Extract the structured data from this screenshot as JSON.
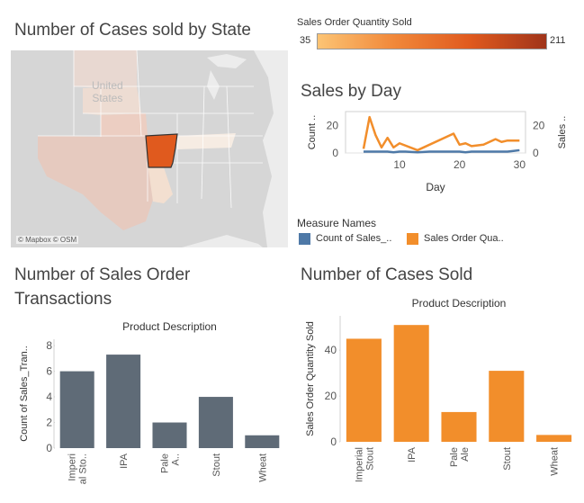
{
  "titles": {
    "map": "Number of Cases sold by State",
    "sales_by_day": "Sales by Day",
    "transactions_line1": "Number of Sales Order",
    "transactions_line2": "Transactions",
    "cases_sold": "Number of Cases Sold"
  },
  "map": {
    "attribution": "© Mapbox © OSM",
    "watermark_line1": "United",
    "watermark_line2": "States",
    "highlight_color": "#e05a1e"
  },
  "color_legend": {
    "title": "Sales Order Quantity Sold",
    "min": "35",
    "max": "211"
  },
  "measure_legend": {
    "title": "Measure Names",
    "items": [
      {
        "label": "Count of Sales_..",
        "color": "#4e79a7"
      },
      {
        "label": "Sales Order Qua..",
        "color": "#f28e2b"
      }
    ]
  },
  "chart_data": [
    {
      "type": "line",
      "id": "sales-by-day",
      "xlabel": "Day",
      "ylabel_left": "Count ..",
      "ylabel_right": "Sales ..",
      "xlim": [
        1,
        31
      ],
      "x_ticks": [
        "10",
        "20",
        "30"
      ],
      "y_ticks_left": [
        "0",
        "20"
      ],
      "y_ticks_right": [
        "0",
        "20"
      ],
      "ylim": [
        0,
        30
      ],
      "series": [
        {
          "name": "Count of Sales_..",
          "color": "#4e79a7",
          "x": [
            4,
            6,
            8,
            9,
            10,
            11,
            13,
            15,
            17,
            19,
            20,
            21,
            22,
            24,
            26,
            28,
            29,
            30
          ],
          "y": [
            1,
            1,
            1,
            0.5,
            1,
            1,
            0.5,
            1,
            1,
            1,
            1,
            0.5,
            1,
            1,
            1,
            1,
            1.5,
            2
          ]
        },
        {
          "name": "Sales Order Qua..",
          "color": "#f28e2b",
          "x": [
            4,
            5,
            6,
            7,
            8,
            9,
            10,
            13,
            19,
            20,
            21,
            22,
            24,
            26,
            27,
            28,
            29,
            30
          ],
          "y": [
            3,
            26,
            13,
            4,
            11,
            4,
            7,
            2,
            14,
            6,
            7,
            5,
            6,
            10,
            8,
            9,
            9,
            9
          ]
        }
      ]
    },
    {
      "type": "bar",
      "id": "transactions",
      "title": "Product Description",
      "ylabel": "Count of Sales_Tran..",
      "categories": [
        "Imperi al Sto..",
        "IPA",
        "Pale A..",
        "Stout",
        "Wheat"
      ],
      "values": [
        6,
        7.3,
        2,
        4,
        1
      ],
      "ylim": [
        0,
        8.5
      ],
      "y_ticks": [
        "0",
        "2",
        "4",
        "6",
        "8"
      ],
      "color": "#5f6b77"
    },
    {
      "type": "bar",
      "id": "cases-sold",
      "title": "Product Description",
      "ylabel": "Sales Order Quantity Sold",
      "categories": [
        "Imperial Stout",
        "IPA",
        "Pale Ale",
        "Stout",
        "Wheat"
      ],
      "values": [
        45,
        51,
        13,
        31,
        3
      ],
      "ylim": [
        0,
        55
      ],
      "y_ticks": [
        "0",
        "20",
        "40"
      ],
      "color": "#f28e2b"
    }
  ]
}
